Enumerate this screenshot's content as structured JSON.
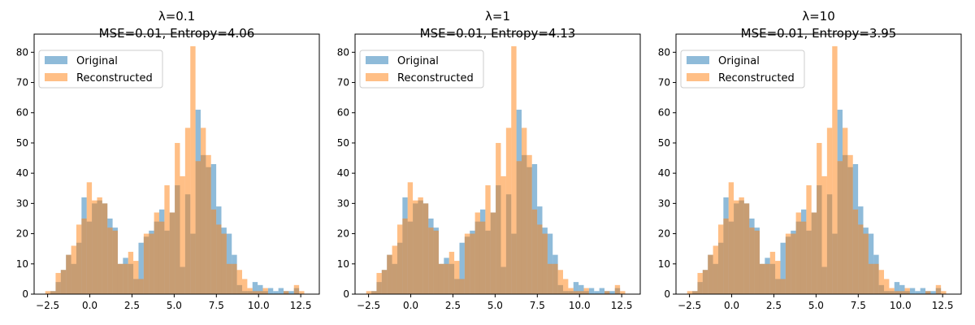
{
  "chart_data": [
    {
      "type": "bar",
      "title_lines": [
        "λ=0.1",
        "MSE=0.01, Entropy=4.06"
      ],
      "xlim": [
        -3.3,
        13.6
      ],
      "ylim": [
        0,
        86
      ],
      "xticks": [
        -2.5,
        0.0,
        2.5,
        5.0,
        7.5,
        10.0,
        12.5
      ],
      "xtick_labels": [
        "−2.5",
        "0.0",
        "2.5",
        "5.0",
        "7.5",
        "10.0",
        "12.5"
      ],
      "yticks": [
        0,
        10,
        20,
        30,
        40,
        50,
        60,
        70,
        80
      ],
      "ytick_labels": [
        "0",
        "10",
        "20",
        "30",
        "40",
        "50",
        "60",
        "70",
        "80"
      ],
      "legend_position": "upper left",
      "bin_start": -2.64,
      "bin_width": 0.307,
      "series": [
        {
          "name": "Original",
          "color": "#1f77b4",
          "alpha": 0.5,
          "values": [
            0,
            1,
            4,
            8,
            13,
            10,
            17,
            32,
            24,
            30,
            31,
            30,
            25,
            22,
            10,
            12,
            10,
            5,
            17,
            19,
            21,
            24,
            28,
            21,
            27,
            36,
            9,
            33,
            20,
            61,
            46,
            42,
            43,
            29,
            22,
            20,
            13,
            3,
            1,
            1,
            4,
            3,
            1,
            2,
            1,
            2,
            1,
            1,
            2,
            0
          ]
        },
        {
          "name": "Reconstructed",
          "color": "#ff7f0e",
          "alpha": 0.5,
          "values": [
            1,
            1,
            7,
            8,
            13,
            16,
            23,
            25,
            37,
            31,
            32,
            30,
            22,
            21,
            10,
            10,
            14,
            11,
            5,
            20,
            20,
            27,
            24,
            36,
            27,
            50,
            39,
            55,
            82,
            44,
            55,
            46,
            28,
            23,
            20,
            10,
            10,
            8,
            5,
            2,
            1,
            1,
            2,
            0,
            0,
            0,
            1,
            0,
            3,
            1
          ]
        }
      ]
    },
    {
      "type": "bar",
      "title_lines": [
        "λ=1",
        "MSE=0.01, Entropy=4.13"
      ],
      "xlim": [
        -3.3,
        13.6
      ],
      "ylim": [
        0,
        86
      ],
      "xticks": [
        -2.5,
        0.0,
        2.5,
        5.0,
        7.5,
        10.0,
        12.5
      ],
      "xtick_labels": [
        "−2.5",
        "0.0",
        "2.5",
        "5.0",
        "7.5",
        "10.0",
        "12.5"
      ],
      "yticks": [
        0,
        10,
        20,
        30,
        40,
        50,
        60,
        70,
        80
      ],
      "ytick_labels": [
        "0",
        "10",
        "20",
        "30",
        "40",
        "50",
        "60",
        "70",
        "80"
      ],
      "legend_position": "upper left",
      "bin_start": -2.64,
      "bin_width": 0.307,
      "series": [
        {
          "name": "Original",
          "color": "#1f77b4",
          "alpha": 0.5,
          "values": [
            0,
            1,
            4,
            8,
            13,
            10,
            17,
            32,
            24,
            30,
            31,
            30,
            25,
            22,
            10,
            12,
            10,
            5,
            17,
            19,
            21,
            24,
            28,
            21,
            27,
            36,
            9,
            33,
            20,
            61,
            46,
            42,
            43,
            29,
            22,
            20,
            13,
            3,
            1,
            1,
            4,
            3,
            1,
            2,
            1,
            2,
            1,
            1,
            2,
            0
          ]
        },
        {
          "name": "Reconstructed",
          "color": "#ff7f0e",
          "alpha": 0.5,
          "values": [
            1,
            1,
            7,
            8,
            13,
            16,
            23,
            25,
            37,
            31,
            32,
            30,
            22,
            21,
            10,
            10,
            14,
            11,
            5,
            20,
            20,
            27,
            24,
            36,
            27,
            50,
            39,
            55,
            82,
            44,
            55,
            46,
            28,
            23,
            20,
            10,
            10,
            8,
            5,
            2,
            1,
            1,
            2,
            0,
            0,
            0,
            1,
            0,
            3,
            1
          ]
        }
      ]
    },
    {
      "type": "bar",
      "title_lines": [
        "λ=10",
        "MSE=0.01, Entropy=3.95"
      ],
      "xlim": [
        -3.3,
        13.6
      ],
      "ylim": [
        0,
        86
      ],
      "xticks": [
        -2.5,
        0.0,
        2.5,
        5.0,
        7.5,
        10.0,
        12.5
      ],
      "xtick_labels": [
        "−2.5",
        "0.0",
        "2.5",
        "5.0",
        "7.5",
        "10.0",
        "12.5"
      ],
      "yticks": [
        0,
        10,
        20,
        30,
        40,
        50,
        60,
        70,
        80
      ],
      "ytick_labels": [
        "0",
        "10",
        "20",
        "30",
        "40",
        "50",
        "60",
        "70",
        "80"
      ],
      "legend_position": "upper left",
      "bin_start": -2.64,
      "bin_width": 0.307,
      "series": [
        {
          "name": "Original",
          "color": "#1f77b4",
          "alpha": 0.5,
          "values": [
            0,
            1,
            4,
            8,
            13,
            10,
            17,
            32,
            24,
            30,
            31,
            30,
            25,
            22,
            10,
            12,
            10,
            5,
            17,
            19,
            21,
            24,
            28,
            21,
            27,
            36,
            9,
            33,
            20,
            61,
            46,
            42,
            43,
            29,
            22,
            20,
            13,
            3,
            1,
            1,
            4,
            3,
            1,
            2,
            1,
            2,
            1,
            1,
            2,
            0
          ]
        },
        {
          "name": "Reconstructed",
          "color": "#ff7f0e",
          "alpha": 0.5,
          "values": [
            1,
            1,
            7,
            8,
            13,
            16,
            23,
            25,
            37,
            31,
            32,
            30,
            22,
            21,
            10,
            10,
            14,
            11,
            5,
            20,
            20,
            27,
            24,
            36,
            27,
            50,
            39,
            55,
            82,
            44,
            55,
            46,
            28,
            23,
            20,
            10,
            10,
            8,
            5,
            2,
            1,
            1,
            2,
            0,
            0,
            0,
            1,
            0,
            3,
            1
          ]
        }
      ]
    }
  ]
}
